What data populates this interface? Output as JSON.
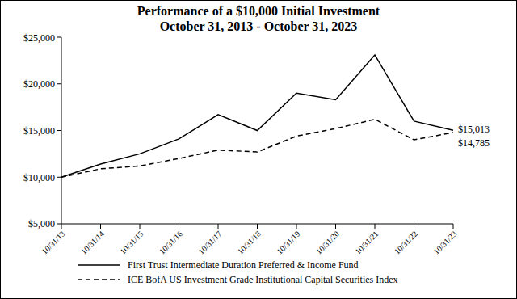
{
  "chart_data": {
    "type": "line",
    "title": "Performance of a $10,000 Initial Investment",
    "subtitle": "October 31, 2013 - October 31, 2023",
    "categories": [
      "10/31/13",
      "10/31/14",
      "10/31/15",
      "10/31/16",
      "10/31/17",
      "10/31/18",
      "10/31/19",
      "10/31/20",
      "10/31/21",
      "10/31/22",
      "10/31/23"
    ],
    "series": [
      {
        "name": "First Trust Intermediate Duration Preferred & Income Fund",
        "color": "#000000",
        "line_style": "solid",
        "values": [
          10000,
          11400,
          12500,
          14100,
          16700,
          15000,
          19000,
          18300,
          23100,
          16000,
          15013
        ],
        "value_labels": [
          null,
          null,
          null,
          null,
          null,
          null,
          null,
          null,
          null,
          null,
          "$15,013"
        ]
      },
      {
        "name": "ICE BofA US Investment Grade Institutional Capital Securities Index",
        "color": "#000000",
        "line_style": "dashed",
        "values": [
          10000,
          10900,
          11200,
          12000,
          12900,
          12700,
          14400,
          15200,
          16200,
          14000,
          14785
        ],
        "value_labels": [
          null,
          null,
          null,
          null,
          null,
          null,
          null,
          null,
          null,
          null,
          "$14,785"
        ]
      }
    ],
    "ylim": [
      5000,
      25000
    ],
    "yticks": [
      {
        "value": 5000,
        "label": "$5,000"
      },
      {
        "value": 10000,
        "label": "$10,000"
      },
      {
        "value": 15000,
        "label": "$15,000"
      },
      {
        "value": 20000,
        "label": "$20,000"
      },
      {
        "value": 25000,
        "label": "$25,000"
      }
    ],
    "grid": false,
    "data_labels": true,
    "legend": "bottom"
  }
}
